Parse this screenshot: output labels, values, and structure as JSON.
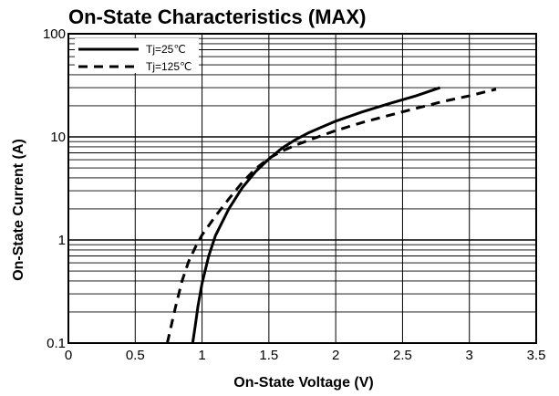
{
  "chart_data": {
    "type": "line",
    "title": "On-State Characteristics (MAX)",
    "xlabel": "On-State Voltage (V)",
    "ylabel": "On-State Current (A)",
    "x_scale": "linear",
    "y_scale": "log",
    "xlim": [
      0,
      3.5
    ],
    "ylim": [
      0.1,
      100
    ],
    "x_ticks": [
      "0",
      "0.5",
      "1",
      "1.5",
      "2",
      "2.5",
      "3",
      "3.5"
    ],
    "y_ticks": [
      "0.1",
      "1",
      "10",
      "100"
    ],
    "grid": true,
    "legend_position": "top-left",
    "series": [
      {
        "name": "Tj=25℃",
        "style": "solid",
        "color": "#000000",
        "points": [
          [
            0.93,
            0.1
          ],
          [
            0.95,
            0.15
          ],
          [
            0.97,
            0.23
          ],
          [
            1.0,
            0.38
          ],
          [
            1.05,
            0.7
          ],
          [
            1.1,
            1.1
          ],
          [
            1.2,
            2.0
          ],
          [
            1.3,
            3.2
          ],
          [
            1.4,
            4.6
          ],
          [
            1.5,
            6.1
          ],
          [
            1.6,
            7.8
          ],
          [
            1.7,
            9.4
          ],
          [
            1.8,
            11.0
          ],
          [
            1.9,
            12.5
          ],
          [
            2.0,
            14.2
          ],
          [
            2.2,
            17.5
          ],
          [
            2.4,
            21.0
          ],
          [
            2.6,
            25.0
          ],
          [
            2.78,
            30.0
          ]
        ]
      },
      {
        "name": "Tj=125℃",
        "style": "dashed",
        "color": "#000000",
        "points": [
          [
            0.74,
            0.1
          ],
          [
            0.8,
            0.22
          ],
          [
            0.85,
            0.4
          ],
          [
            0.9,
            0.62
          ],
          [
            0.95,
            0.85
          ],
          [
            1.0,
            1.12
          ],
          [
            1.1,
            1.7
          ],
          [
            1.2,
            2.5
          ],
          [
            1.3,
            3.6
          ],
          [
            1.4,
            4.9
          ],
          [
            1.5,
            6.2
          ],
          [
            1.6,
            7.3
          ],
          [
            1.7,
            8.3
          ],
          [
            1.8,
            9.3
          ],
          [
            2.0,
            11.5
          ],
          [
            2.2,
            13.8
          ],
          [
            2.5,
            17.5
          ],
          [
            2.8,
            22.0
          ],
          [
            3.0,
            25.0
          ],
          [
            3.2,
            29.0
          ]
        ]
      }
    ]
  }
}
